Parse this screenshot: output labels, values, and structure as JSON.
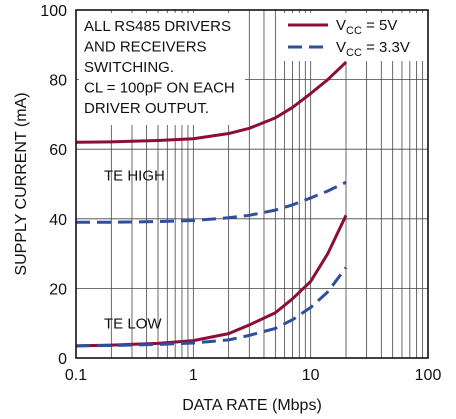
{
  "chart_data": {
    "type": "line",
    "xlabel": "DATA RATE (Mbps)",
    "ylabel": "SUPPLY CURRENT (mA)",
    "xscale": "log",
    "xlim": [
      0.1,
      100
    ],
    "ylim": [
      0,
      100
    ],
    "x_ticks": [
      "0.1",
      "1",
      "10",
      "100"
    ],
    "y_ticks": [
      "0",
      "20",
      "40",
      "60",
      "80",
      "100"
    ],
    "grid": true,
    "legend": {
      "placement": "top-right",
      "entries": [
        {
          "main": "V",
          "sub": "CC",
          "rest": " = 5V"
        },
        {
          "main": "V",
          "sub": "CC",
          "rest": " = 3.3V"
        }
      ]
    },
    "colors": {
      "vcc_5v": "#8b0d3a",
      "vcc_3v3": "#2e4e9e"
    },
    "annotations": {
      "note": [
        "ALL RS485 DRIVERS",
        "AND RECEIVERS",
        "SWITCHING.",
        "CL = 100pF ON EACH",
        "DRIVER OUTPUT."
      ],
      "te_high": "TE HIGH",
      "te_low": "TE LOW"
    },
    "series": [
      {
        "legend_index": 0,
        "group": "TE HIGH",
        "style": "solid",
        "x": [
          0.1,
          0.2,
          0.5,
          1,
          2,
          3,
          5,
          7,
          10,
          14,
          20
        ],
        "y": [
          62,
          62.1,
          62.5,
          63,
          64.5,
          66,
          69,
          72,
          76,
          80,
          85
        ]
      },
      {
        "legend_index": 1,
        "group": "TE HIGH",
        "style": "dashed",
        "x": [
          0.1,
          0.2,
          0.5,
          1,
          2,
          3,
          5,
          7,
          10,
          14,
          20
        ],
        "y": [
          39,
          39,
          39.2,
          39.5,
          40.3,
          41,
          42.5,
          44,
          46,
          48,
          50.5
        ]
      },
      {
        "legend_index": 0,
        "group": "TE LOW",
        "style": "solid",
        "x": [
          0.1,
          0.2,
          0.5,
          1,
          2,
          3,
          5,
          7,
          10,
          14,
          20
        ],
        "y": [
          3.5,
          3.7,
          4.2,
          5,
          7,
          9.5,
          13,
          17,
          22,
          30,
          41
        ]
      },
      {
        "legend_index": 1,
        "group": "TE LOW",
        "style": "dashed",
        "x": [
          0.1,
          0.2,
          0.5,
          1,
          2,
          3,
          5,
          7,
          10,
          14,
          20
        ],
        "y": [
          3.5,
          3.6,
          3.9,
          4.3,
          5.2,
          6.5,
          8.5,
          11,
          14.5,
          19,
          26
        ]
      }
    ]
  }
}
